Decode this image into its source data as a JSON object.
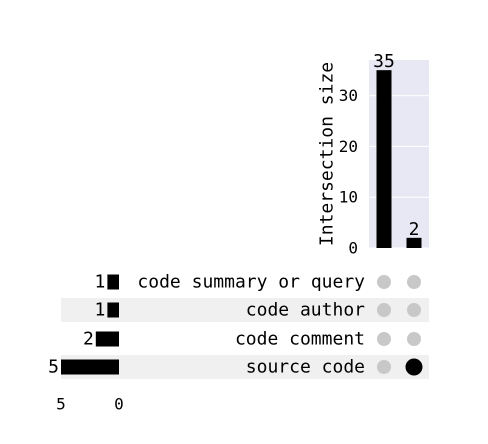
{
  "chart_data": {
    "type": "bar",
    "subtype": "upset",
    "intersections": {
      "ylabel": "Intersection size",
      "ylim": [
        0,
        37
      ],
      "yticks": [
        0,
        10,
        20,
        30
      ],
      "values": [
        35,
        2
      ],
      "value_labels": [
        "35",
        "2"
      ],
      "grid": true
    },
    "sets": [
      {
        "name": "code summary or query",
        "size": 1
      },
      {
        "name": "code author",
        "size": 1
      },
      {
        "name": "code comment",
        "size": 2
      },
      {
        "name": "source code",
        "size": 5
      }
    ],
    "set_size_ticks": [
      "5",
      "0"
    ],
    "membership": [
      [
        false,
        false,
        false,
        false
      ],
      [
        false,
        false,
        false,
        true
      ]
    ],
    "colors": {
      "bar": "#000000",
      "plot_bg": "#e8e8f4",
      "grid": "#ffffff",
      "row_band": "#f0f0f0",
      "dot_active": "#000000",
      "dot_inactive": "#c8c8c8"
    }
  }
}
